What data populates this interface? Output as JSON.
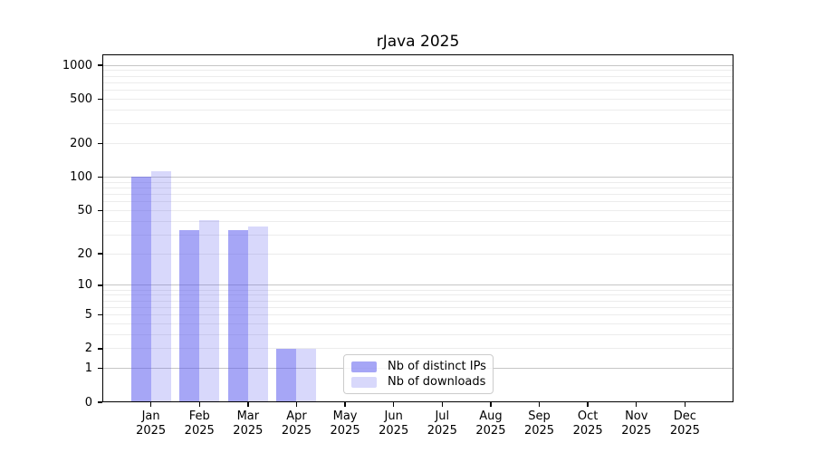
{
  "chart_data": {
    "type": "bar",
    "title": "rJava 2025",
    "categories": [
      "Jan 2025",
      "Feb 2025",
      "Mar 2025",
      "Apr 2025",
      "May 2025",
      "Jun 2025",
      "Jul 2025",
      "Aug 2025",
      "Sep 2025",
      "Oct 2025",
      "Nov 2025",
      "Dec 2025"
    ],
    "series": [
      {
        "name": "Nb of distinct IPs",
        "color": "rgba(85,85,238,0.52)",
        "values": [
          101,
          33,
          33,
          2,
          0,
          0,
          0,
          0,
          0,
          0,
          0,
          0
        ]
      },
      {
        "name": "Nb of downloads",
        "color": "rgba(85,85,238,0.23)",
        "values": [
          114,
          41,
          36,
          2,
          0,
          0,
          0,
          0,
          0,
          0,
          0,
          0
        ]
      }
    ],
    "y_axis": {
      "scale": "log1p",
      "range": [
        0,
        1000
      ],
      "ticks": [
        0,
        1,
        2,
        5,
        10,
        20,
        50,
        100,
        200,
        500,
        1000
      ]
    },
    "x_axis": {
      "label": "",
      "tick_style": "two-line month over year"
    },
    "grid": {
      "enabled": true,
      "major_lines": [
        1,
        10,
        100,
        1000
      ],
      "major_color": "#c6c6c6",
      "minor_color": "#ececec"
    },
    "legend": {
      "position": "bottom-center-inside",
      "border_color": "#cccccc",
      "entries": [
        "Nb of distinct IPs",
        "Nb of downloads"
      ]
    },
    "colors": {
      "background": "#ffffff",
      "axis": "#000000",
      "text": "#000000"
    }
  }
}
